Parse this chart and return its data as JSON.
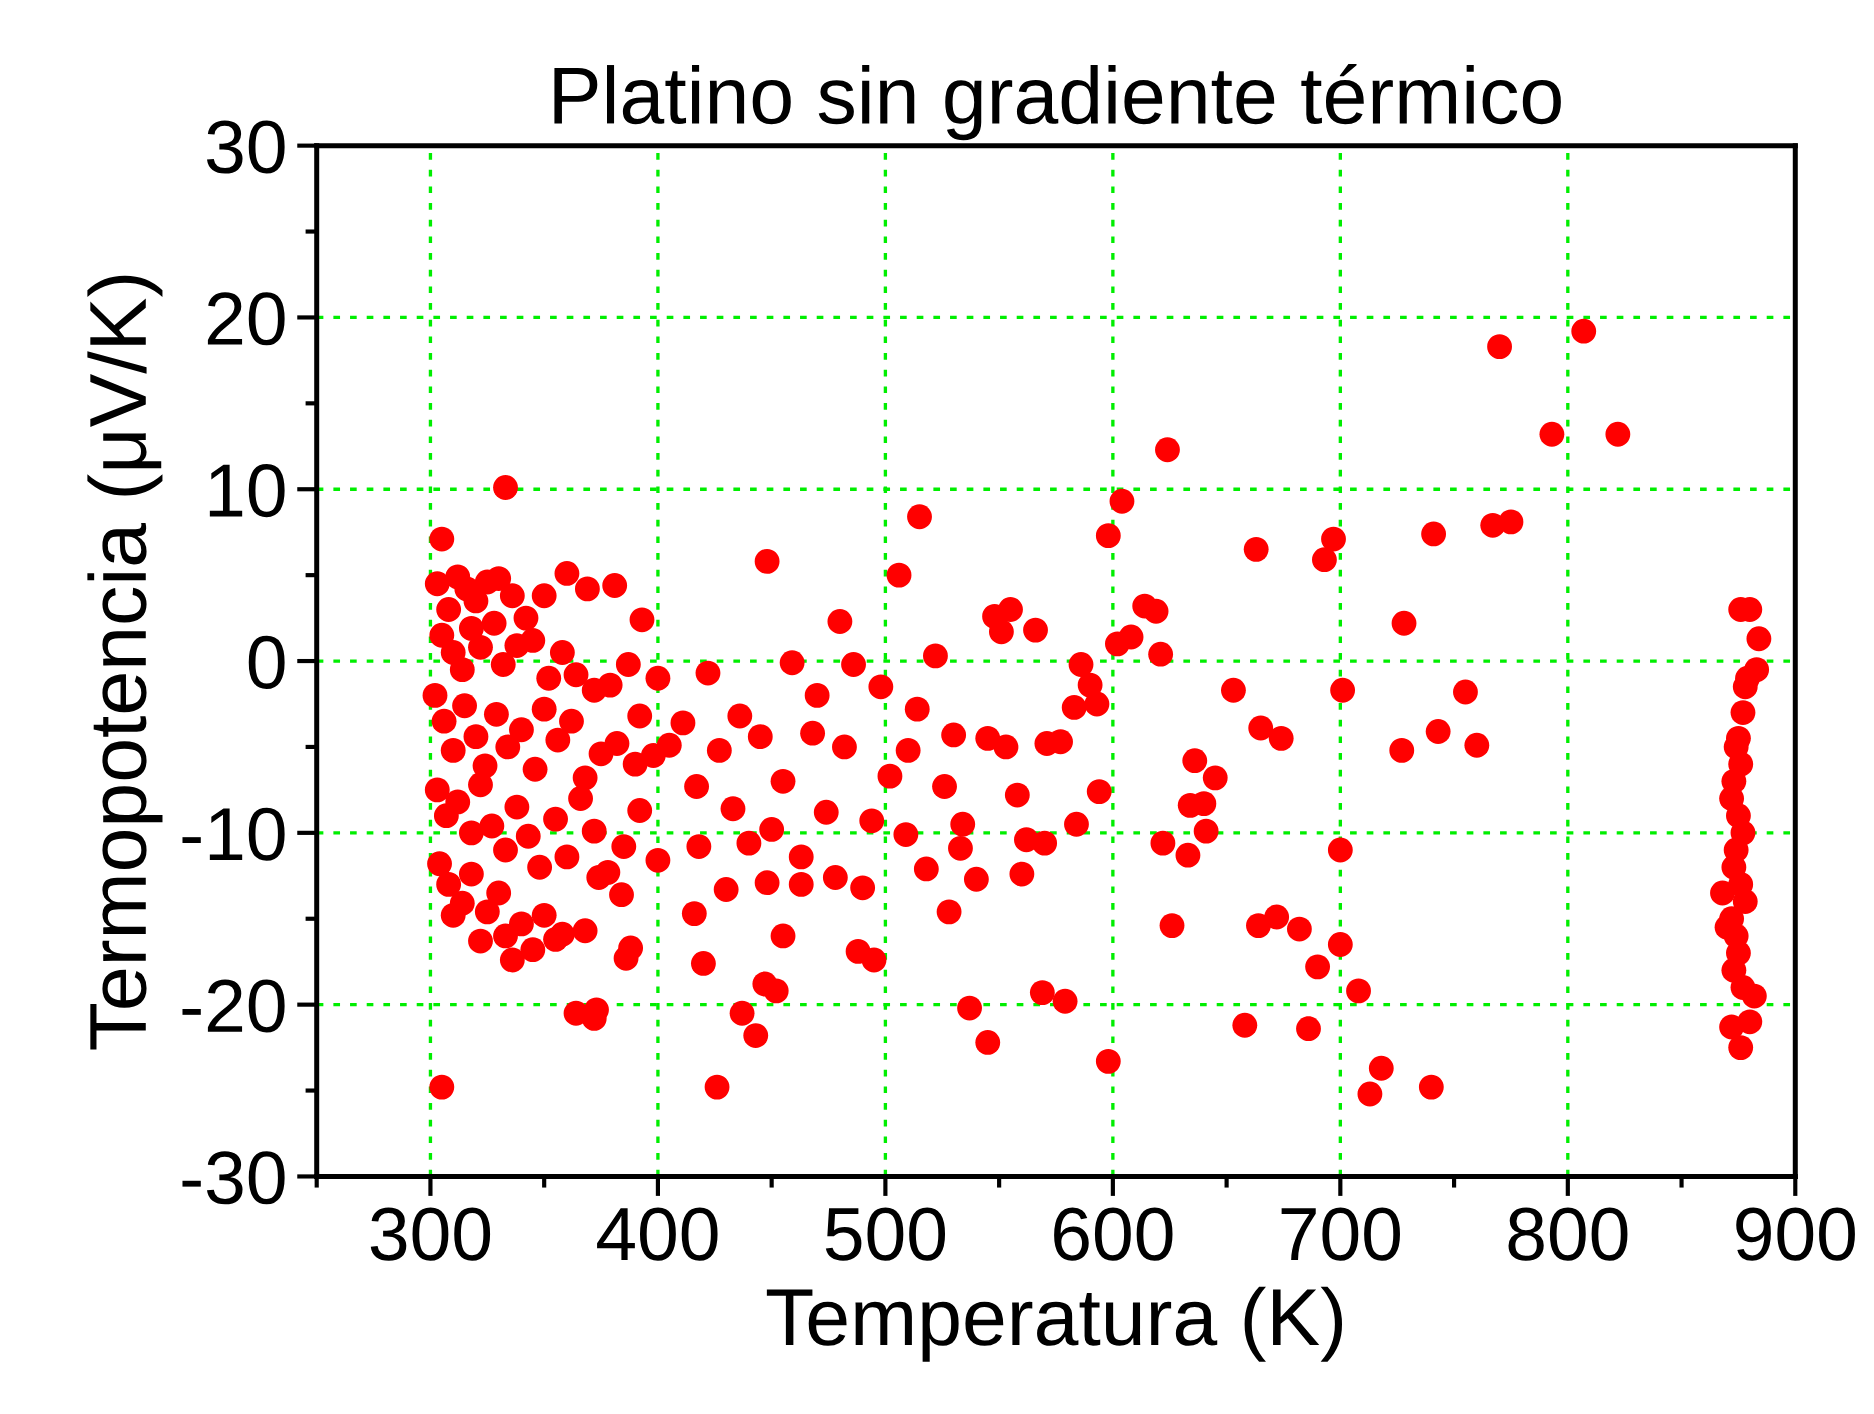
{
  "chart_data": {
    "type": "scatter",
    "title": "Platino sin gradiente térmico",
    "xlabel": "Temperatura (K)",
    "ylabel": "Termopotencia (μV/K)",
    "xlim": [
      250,
      900
    ],
    "ylim": [
      -30,
      30
    ],
    "xticks": [
      {
        "value": 250,
        "label": null
      },
      300,
      {
        "value": 350,
        "label": null
      },
      400,
      {
        "value": 450,
        "label": null
      },
      500,
      {
        "value": 550,
        "label": null
      },
      600,
      {
        "value": 650,
        "label": null
      },
      700,
      {
        "value": 750,
        "label": null
      },
      800,
      {
        "value": 850,
        "label": null
      },
      900
    ],
    "yticks": [
      -30,
      {
        "value": -25,
        "label": null
      },
      -20,
      {
        "value": -15,
        "label": null
      },
      -10,
      {
        "value": -5,
        "label": null
      },
      0,
      {
        "value": 5,
        "label": null
      },
      10,
      {
        "value": 15,
        "label": null
      },
      20,
      {
        "value": 25,
        "label": null
      },
      30
    ],
    "grid": true,
    "marker": "circle",
    "series": [
      {
        "color": "#ff0000",
        "x": [
          770,
          807,
          793,
          822,
          604,
          624,
          598,
          663,
          693,
          697,
          741,
          767,
          775,
          515,
          448,
          333,
          305,
          728,
          653,
          701,
          755,
          614,
          619,
          608,
          602,
          621,
          586,
          590,
          593,
          571,
          577,
          583,
          584,
          594,
          558,
          553,
          562,
          570,
          640,
          645,
          634,
          636,
          641,
          665,
          674,
          727,
          743,
          760,
          700,
          622,
          633,
          626,
          664,
          672,
          682,
          700,
          690,
          708,
          686,
          658,
          598,
          569,
          579,
          545,
          537,
          718,
          713,
          740,
          426,
          305,
          364,
          372,
          373,
          437,
          443,
          876,
          880,
          883,
          879,
          878,
          877,
          875,
          874,
          876,
          873,
          872,
          875,
          877,
          874,
          873,
          876,
          878,
          872,
          874,
          875,
          873,
          877,
          880,
          872,
          876,
          882,
          884,
          868,
          870,
          303,
          308,
          312,
          316,
          320,
          325,
          330,
          336,
          342,
          350,
          360,
          369,
          381,
          393,
          305,
          310,
          314,
          318,
          322,
          328,
          332,
          338,
          345,
          352,
          358,
          364,
          372,
          379,
          387,
          392,
          302,
          306,
          310,
          315,
          320,
          324,
          329,
          334,
          340,
          346,
          350,
          356,
          362,
          368,
          375,
          382,
          390,
          398,
          303,
          307,
          312,
          318,
          322,
          327,
          333,
          338,
          343,
          348,
          355,
          360,
          366,
          372,
          378,
          385,
          392,
          400,
          304,
          308,
          314,
          318,
          325,
          330,
          340,
          350,
          358,
          368,
          374,
          384,
          310,
          322,
          333,
          336,
          345,
          355,
          388,
          386,
          400,
          405,
          411,
          417,
          422,
          427,
          433,
          436,
          440,
          445,
          450,
          455,
          459,
          463,
          468,
          470,
          474,
          478,
          482,
          486,
          490,
          494,
          498,
          502,
          506,
          509,
          514,
          518,
          522,
          526,
          530,
          534,
          540,
          545,
          548,
          551,
          555,
          560,
          566,
          416,
          420,
          447,
          452,
          455,
          488,
          495,
          528,
          533,
          448,
          430,
          418,
          480,
          463,
          510
        ],
        "values": [
          18.3,
          19.2,
          13.2,
          13.2,
          9.3,
          12.3,
          7.3,
          6.5,
          5.9,
          7.1,
          7.4,
          7.9,
          8.1,
          8.4,
          5.8,
          10.1,
          7.1,
          2.2,
          -1.7,
          -1.7,
          -1.8,
          3.2,
          2.9,
          1.4,
          1.0,
          0.4,
          -0.2,
          -1.4,
          -2.5,
          -4.8,
          -4.7,
          -2.7,
          -9.5,
          -7.6,
          -7.8,
          -5.0,
          -10.4,
          -10.6,
          -8.3,
          -6.8,
          -8.4,
          -5.8,
          -9.9,
          -3.9,
          -4.5,
          -5.2,
          -4.1,
          -4.9,
          -11.0,
          -10.6,
          -11.3,
          -15.4,
          -15.4,
          -14.9,
          -15.6,
          -16.5,
          -17.8,
          -19.2,
          -21.4,
          -21.2,
          -23.3,
          -19.3,
          -19.8,
          -22.2,
          -20.2,
          -23.7,
          -25.2,
          -24.8,
          -24.8,
          -24.8,
          -20.5,
          -20.8,
          -20.3,
          -20.5,
          -21.8,
          3.0,
          3.0,
          -0.5,
          -1.0,
          -1.5,
          -3.0,
          -4.5,
          -5.0,
          -6.0,
          -7.0,
          -8.0,
          -9.0,
          -10.0,
          -11.0,
          -12.0,
          -13.0,
          -14.0,
          -15.0,
          -16.0,
          -17.0,
          -18.0,
          -19.0,
          -21.0,
          -21.3,
          -22.5,
          -19.5,
          1.3,
          -13.5,
          -15.5,
          4.5,
          3.0,
          4.9,
          4.2,
          3.5,
          4.6,
          4.8,
          3.8,
          2.5,
          3.8,
          5.1,
          4.2,
          4.4,
          2.4,
          1.5,
          0.5,
          -0.5,
          1.9,
          0.8,
          2.2,
          -0.2,
          0.9,
          1.2,
          -1.0,
          0.5,
          -0.8,
          -1.7,
          -1.4,
          -0.2,
          -3.2,
          -2.0,
          -3.5,
          -5.2,
          -2.6,
          -4.4,
          -6.1,
          -3.1,
          -5.0,
          -4.0,
          -6.3,
          -2.8,
          -4.6,
          -3.5,
          -6.8,
          -5.4,
          -4.8,
          -6.0,
          -5.5,
          -7.5,
          -9.0,
          -8.2,
          -10.0,
          -7.2,
          -9.6,
          -11.0,
          -8.5,
          -10.2,
          -12.0,
          -9.2,
          -11.4,
          -8.0,
          -9.9,
          -12.3,
          -10.8,
          -8.7,
          -11.6,
          -11.8,
          -13.0,
          -14.1,
          -12.4,
          -14.6,
          -13.5,
          -15.3,
          -14.8,
          -15.9,
          -15.7,
          -12.6,
          -13.6,
          -14.8,
          -16.3,
          -16.0,
          -17.4,
          -16.8,
          -16.2,
          -16.7,
          -17.3,
          -1.0,
          -4.9,
          -3.6,
          -7.3,
          -0.7,
          -5.2,
          -8.6,
          -3.2,
          -10.6,
          -4.4,
          -9.8,
          -7.0,
          -0.1,
          -11.4,
          -4.2,
          -2.0,
          -8.8,
          -12.6,
          -5.0,
          -0.2,
          -13.2,
          -9.3,
          -1.5,
          -6.7,
          5.0,
          -10.1,
          -2.8,
          -12.1,
          0.3,
          -7.3,
          -4.3,
          -9.5,
          -12.7,
          -4.5,
          2.6,
          1.7,
          3.0,
          -12.4,
          1.8,
          -14.7,
          -17.6,
          -18.8,
          -19.2,
          -16.0,
          -16.9,
          -17.4,
          -14.6,
          -10.9,
          -12.9,
          -13.3,
          -10.8,
          2.3,
          -13.0,
          -5.2
        ]
      }
    ]
  }
}
